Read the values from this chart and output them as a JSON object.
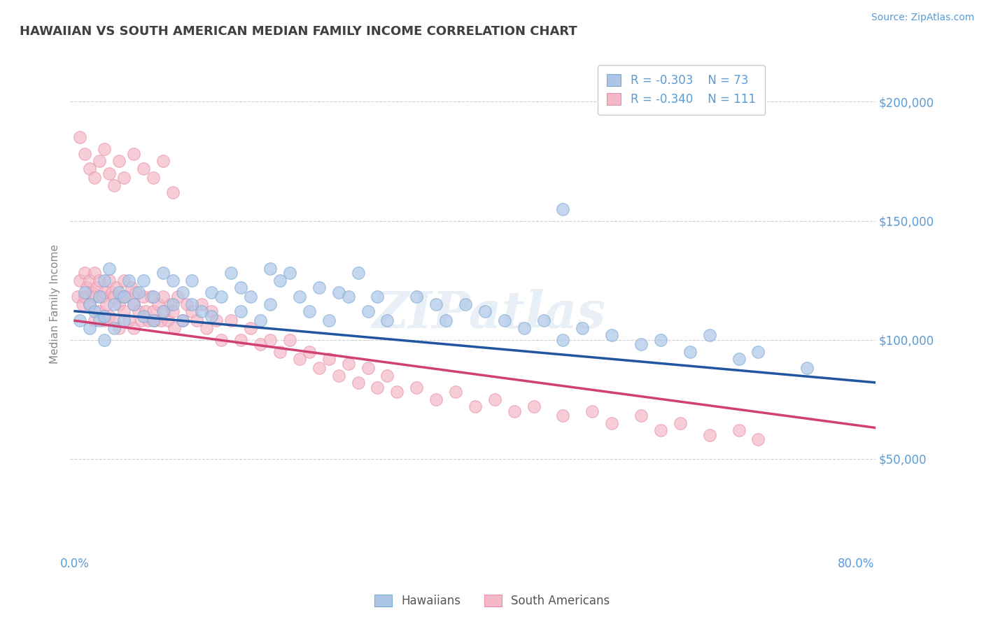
{
  "title": "HAWAIIAN VS SOUTH AMERICAN MEDIAN FAMILY INCOME CORRELATION CHART",
  "source_text": "Source: ZipAtlas.com",
  "ylabel": "Median Family Income",
  "xlim": [
    -0.005,
    0.82
  ],
  "ylim": [
    10000,
    220000
  ],
  "yticks": [
    50000,
    100000,
    150000,
    200000
  ],
  "ytick_labels": [
    "$50,000",
    "$100,000",
    "$150,000",
    "$200,000"
  ],
  "xticks": [
    0.0,
    0.8
  ],
  "xtick_labels": [
    "0.0%",
    "80.0%"
  ],
  "background_color": "#ffffff",
  "grid_color": "#d0d0d0",
  "title_color": "#404040",
  "axis_label_color": "#5b9bd5",
  "watermark_text": "ZIPatlas",
  "legend_r1": "R = -0.303",
  "legend_n1": "N = 73",
  "legend_r2": "R = -0.340",
  "legend_n2": "N = 111",
  "blue_color": "#adc6e8",
  "pink_color": "#f4b8c8",
  "blue_marker_edge": "#7aa8d0",
  "pink_marker_edge": "#e890a8",
  "blue_line_color": "#2255a0",
  "pink_line_color": "#d04070",
  "legend_blue_label": "Hawaiians",
  "legend_pink_label": "South Americans",
  "hawaiian_x": [
    0.005,
    0.01,
    0.015,
    0.015,
    0.02,
    0.025,
    0.025,
    0.03,
    0.03,
    0.03,
    0.035,
    0.04,
    0.04,
    0.045,
    0.05,
    0.05,
    0.055,
    0.06,
    0.065,
    0.07,
    0.07,
    0.08,
    0.08,
    0.09,
    0.09,
    0.1,
    0.1,
    0.11,
    0.11,
    0.12,
    0.12,
    0.13,
    0.14,
    0.14,
    0.15,
    0.16,
    0.17,
    0.17,
    0.18,
    0.19,
    0.2,
    0.2,
    0.21,
    0.22,
    0.23,
    0.24,
    0.25,
    0.26,
    0.27,
    0.28,
    0.29,
    0.3,
    0.31,
    0.32,
    0.35,
    0.37,
    0.38,
    0.4,
    0.42,
    0.44,
    0.46,
    0.48,
    0.5,
    0.52,
    0.55,
    0.58,
    0.6,
    0.63,
    0.65,
    0.68,
    0.7,
    0.75,
    0.5
  ],
  "hawaiian_y": [
    108000,
    120000,
    115000,
    105000,
    112000,
    118000,
    108000,
    125000,
    110000,
    100000,
    130000,
    115000,
    105000,
    120000,
    118000,
    108000,
    125000,
    115000,
    120000,
    110000,
    125000,
    118000,
    108000,
    128000,
    112000,
    125000,
    115000,
    120000,
    108000,
    125000,
    115000,
    112000,
    120000,
    110000,
    118000,
    128000,
    122000,
    112000,
    118000,
    108000,
    130000,
    115000,
    125000,
    128000,
    118000,
    112000,
    122000,
    108000,
    120000,
    118000,
    128000,
    112000,
    118000,
    108000,
    118000,
    115000,
    108000,
    115000,
    112000,
    108000,
    105000,
    108000,
    100000,
    105000,
    102000,
    98000,
    100000,
    95000,
    102000,
    92000,
    95000,
    88000,
    155000
  ],
  "south_american_x": [
    0.003,
    0.005,
    0.008,
    0.01,
    0.01,
    0.012,
    0.015,
    0.015,
    0.018,
    0.02,
    0.02,
    0.02,
    0.022,
    0.025,
    0.025,
    0.028,
    0.03,
    0.03,
    0.032,
    0.035,
    0.035,
    0.038,
    0.04,
    0.04,
    0.042,
    0.045,
    0.045,
    0.048,
    0.05,
    0.05,
    0.052,
    0.055,
    0.058,
    0.06,
    0.06,
    0.062,
    0.065,
    0.068,
    0.07,
    0.072,
    0.075,
    0.078,
    0.08,
    0.082,
    0.085,
    0.088,
    0.09,
    0.092,
    0.095,
    0.098,
    0.1,
    0.102,
    0.105,
    0.11,
    0.115,
    0.12,
    0.125,
    0.13,
    0.135,
    0.14,
    0.145,
    0.15,
    0.16,
    0.17,
    0.18,
    0.19,
    0.2,
    0.21,
    0.22,
    0.23,
    0.24,
    0.25,
    0.26,
    0.27,
    0.28,
    0.29,
    0.3,
    0.31,
    0.32,
    0.33,
    0.35,
    0.37,
    0.39,
    0.41,
    0.43,
    0.45,
    0.47,
    0.5,
    0.53,
    0.55,
    0.58,
    0.6,
    0.62,
    0.65,
    0.68,
    0.7,
    0.005,
    0.01,
    0.015,
    0.02,
    0.025,
    0.03,
    0.035,
    0.04,
    0.045,
    0.05,
    0.06,
    0.07,
    0.08,
    0.09,
    0.1
  ],
  "south_american_y": [
    118000,
    125000,
    115000,
    128000,
    118000,
    122000,
    125000,
    115000,
    120000,
    128000,
    118000,
    108000,
    122000,
    125000,
    112000,
    118000,
    120000,
    108000,
    115000,
    125000,
    110000,
    120000,
    118000,
    108000,
    122000,
    115000,
    105000,
    118000,
    125000,
    112000,
    118000,
    108000,
    122000,
    115000,
    105000,
    120000,
    112000,
    108000,
    118000,
    112000,
    108000,
    118000,
    112000,
    108000,
    115000,
    108000,
    118000,
    112000,
    108000,
    115000,
    112000,
    105000,
    118000,
    108000,
    115000,
    112000,
    108000,
    115000,
    105000,
    112000,
    108000,
    100000,
    108000,
    100000,
    105000,
    98000,
    100000,
    95000,
    100000,
    92000,
    95000,
    88000,
    92000,
    85000,
    90000,
    82000,
    88000,
    80000,
    85000,
    78000,
    80000,
    75000,
    78000,
    72000,
    75000,
    70000,
    72000,
    68000,
    70000,
    65000,
    68000,
    62000,
    65000,
    60000,
    62000,
    58000,
    185000,
    178000,
    172000,
    168000,
    175000,
    180000,
    170000,
    165000,
    175000,
    168000,
    178000,
    172000,
    168000,
    175000,
    162000
  ]
}
